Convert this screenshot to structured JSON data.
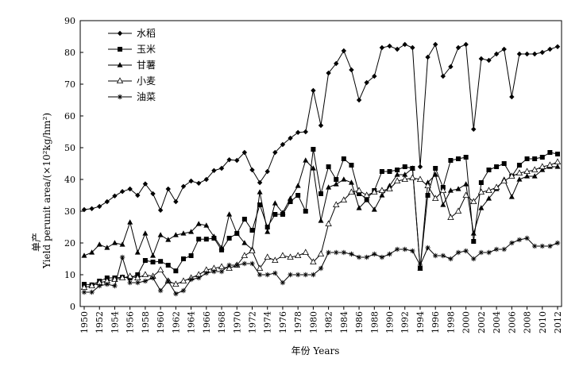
{
  "chart_data": {
    "type": "line",
    "title": "",
    "xlabel": "年份 Years",
    "ylabel_cn": "单产",
    "ylabel_en": "Yield perunit area/(×10²kg/hm²)",
    "xlim": [
      1950,
      2012
    ],
    "ylim": [
      0,
      90
    ],
    "y_ticks": [
      0,
      10,
      20,
      30,
      40,
      50,
      60,
      70,
      80,
      90
    ],
    "x_ticks": [
      1950,
      1952,
      1954,
      1956,
      1958,
      1960,
      1962,
      1964,
      1966,
      1968,
      1970,
      1972,
      1974,
      1976,
      1978,
      1980,
      1982,
      1984,
      1986,
      1988,
      1990,
      1992,
      1994,
      1996,
      1998,
      2000,
      2002,
      2004,
      2006,
      2008,
      2010,
      2012
    ],
    "grid": false,
    "legend_position": "top-left",
    "series": [
      {
        "name": "水稻",
        "marker": "diamond",
        "x": [
          1950,
          1951,
          1952,
          1953,
          1954,
          1955,
          1956,
          1957,
          1958,
          1959,
          1960,
          1961,
          1962,
          1963,
          1964,
          1965,
          1966,
          1967,
          1968,
          1969,
          1970,
          1971,
          1972,
          1973,
          1974,
          1975,
          1976,
          1977,
          1978,
          1979,
          1980,
          1981,
          1982,
          1983,
          1984,
          1985,
          1986,
          1987,
          1988,
          1989,
          1990,
          1991,
          1992,
          1993,
          1994,
          1995,
          1996,
          1997,
          1998,
          1999,
          2000,
          2001,
          2002,
          2003,
          2004,
          2005,
          2006,
          2007,
          2008,
          2009,
          2010,
          2011,
          2012
        ],
        "values": [
          30.5,
          30.8,
          31.5,
          33.0,
          34.8,
          36.2,
          37.0,
          35.0,
          38.6,
          35.5,
          30.3,
          37.0,
          33.0,
          37.8,
          39.5,
          38.8,
          40.0,
          42.8,
          43.5,
          46.2,
          46.0,
          48.5,
          43.0,
          39.0,
          42.5,
          48.5,
          51.0,
          53.0,
          54.8,
          55.0,
          68.0,
          57.0,
          73.5,
          76.5,
          80.5,
          74.5,
          65.0,
          70.5,
          72.5,
          81.5,
          82.0,
          81.0,
          82.5,
          81.5,
          44.0,
          78.5,
          82.5,
          72.5,
          75.5,
          81.5,
          82.5,
          55.8,
          78.0,
          77.5,
          79.5,
          81.0,
          66.0,
          79.5,
          79.5,
          79.5,
          80.0,
          81.0,
          81.8
        ]
      },
      {
        "name": "玉米",
        "marker": "square",
        "x": [
          1950,
          1951,
          1952,
          1953,
          1954,
          1955,
          1956,
          1957,
          1958,
          1959,
          1960,
          1961,
          1962,
          1963,
          1964,
          1965,
          1966,
          1967,
          1968,
          1969,
          1970,
          1971,
          1972,
          1973,
          1974,
          1975,
          1976,
          1977,
          1978,
          1979,
          1980,
          1981,
          1982,
          1983,
          1984,
          1985,
          1986,
          1987,
          1988,
          1989,
          1990,
          1991,
          1992,
          1993,
          1994,
          1995,
          1996,
          1997,
          1998,
          1999,
          2000,
          2001,
          2002,
          2003,
          2004,
          2005,
          2006,
          2007,
          2008,
          2009,
          2010,
          2011,
          2012
        ],
        "values": [
          7.0,
          6.8,
          8.0,
          9.0,
          9.0,
          9.2,
          9.0,
          10.0,
          14.5,
          14.0,
          14.2,
          13.0,
          11.2,
          15.0,
          16.0,
          21.2,
          21.2,
          21.5,
          17.8,
          21.5,
          23.0,
          27.5,
          24.0,
          32.0,
          25.0,
          29.0,
          29.0,
          33.0,
          35.0,
          30.0,
          49.5,
          35.5,
          44.0,
          40.0,
          46.5,
          44.5,
          35.5,
          34.0,
          36.5,
          42.5,
          42.5,
          43.0,
          44.0,
          43.5,
          12.0,
          35.0,
          43.5,
          37.5,
          46.0,
          46.5,
          47.0,
          20.5,
          39.0,
          43.0,
          44.0,
          45.0,
          41.0,
          44.5,
          46.5,
          46.5,
          47.0,
          48.5,
          48.0
        ]
      },
      {
        "name": "甘薯",
        "marker": "triangle",
        "x": [
          1950,
          1951,
          1952,
          1953,
          1954,
          1955,
          1956,
          1957,
          1958,
          1959,
          1960,
          1961,
          1962,
          1963,
          1964,
          1965,
          1966,
          1967,
          1968,
          1969,
          1970,
          1971,
          1972,
          1973,
          1974,
          1975,
          1976,
          1977,
          1978,
          1979,
          1980,
          1981,
          1982,
          1983,
          1984,
          1985,
          1986,
          1987,
          1988,
          1989,
          1990,
          1991,
          1992,
          1993,
          1994,
          1995,
          1996,
          1997,
          1998,
          1999,
          2000,
          2001,
          2002,
          2003,
          2004,
          2005,
          2006,
          2007,
          2008,
          2009,
          2010,
          2011,
          2012
        ],
        "values": [
          16.0,
          17.0,
          19.5,
          18.5,
          20.0,
          19.5,
          26.5,
          17.0,
          23.0,
          16.0,
          22.5,
          21.0,
          22.5,
          23.0,
          23.5,
          26.0,
          25.5,
          22.0,
          18.5,
          29.0,
          23.0,
          20.0,
          18.0,
          36.0,
          23.5,
          32.5,
          29.5,
          34.0,
          38.0,
          46.0,
          43.5,
          27.0,
          37.5,
          38.5,
          40.0,
          39.0,
          31.0,
          33.5,
          30.5,
          35.0,
          38.0,
          41.5,
          41.5,
          43.5,
          12.0,
          39.0,
          41.5,
          32.0,
          36.5,
          37.0,
          38.5,
          23.0,
          31.0,
          34.0,
          37.0,
          40.0,
          34.5,
          40.0,
          41.0,
          41.0,
          43.0,
          44.0,
          44.0
        ]
      },
      {
        "name": "小麦",
        "marker": "open-triangle",
        "x": [
          1950,
          1951,
          1952,
          1953,
          1954,
          1955,
          1956,
          1957,
          1958,
          1959,
          1960,
          1961,
          1962,
          1963,
          1964,
          1965,
          1966,
          1967,
          1968,
          1969,
          1970,
          1971,
          1972,
          1973,
          1974,
          1975,
          1976,
          1977,
          1978,
          1979,
          1980,
          1981,
          1982,
          1983,
          1984,
          1985,
          1986,
          1987,
          1988,
          1989,
          1990,
          1991,
          1992,
          1993,
          1994,
          1995,
          1996,
          1997,
          1998,
          1999,
          2000,
          2001,
          2002,
          2003,
          2004,
          2005,
          2006,
          2007,
          2008,
          2009,
          2010,
          2011,
          2012
        ],
        "values": [
          6.0,
          6.5,
          7.5,
          8.0,
          8.5,
          9.0,
          9.5,
          9.0,
          10.0,
          9.5,
          11.5,
          8.0,
          7.0,
          8.0,
          9.0,
          10.0,
          11.5,
          12.0,
          12.5,
          12.0,
          13.0,
          16.0,
          17.5,
          12.0,
          15.5,
          14.5,
          16.0,
          15.5,
          16.0,
          17.0,
          14.0,
          16.5,
          26.0,
          32.0,
          33.5,
          36.0,
          36.5,
          35.0,
          36.0,
          36.5,
          37.0,
          39.5,
          40.0,
          40.5,
          40.0,
          38.0,
          34.0,
          36.5,
          28.0,
          30.0,
          35.0,
          33.0,
          36.0,
          36.5,
          37.5,
          39.5,
          41.0,
          42.0,
          42.5,
          43.0,
          44.0,
          44.5,
          45.5
        ]
      },
      {
        "name": "油菜",
        "marker": "star",
        "x": [
          1950,
          1951,
          1952,
          1953,
          1954,
          1955,
          1956,
          1957,
          1958,
          1959,
          1960,
          1961,
          1962,
          1963,
          1964,
          1965,
          1966,
          1967,
          1968,
          1969,
          1970,
          1971,
          1972,
          1973,
          1974,
          1975,
          1976,
          1977,
          1978,
          1979,
          1980,
          1981,
          1982,
          1983,
          1984,
          1985,
          1986,
          1987,
          1988,
          1989,
          1990,
          1991,
          1992,
          1993,
          1994,
          1995,
          1996,
          1997,
          1998,
          1999,
          2000,
          2001,
          2002,
          2003,
          2004,
          2005,
          2006,
          2007,
          2008,
          2009,
          2010,
          2011,
          2012
        ],
        "values": [
          4.5,
          4.5,
          6.5,
          7.0,
          6.5,
          15.5,
          7.5,
          7.5,
          8.0,
          9.0,
          5.0,
          8.0,
          4.0,
          5.0,
          8.5,
          9.0,
          10.5,
          11.0,
          11.0,
          13.0,
          13.0,
          13.5,
          13.5,
          10.0,
          10.0,
          10.5,
          7.5,
          10.0,
          10.0,
          10.0,
          10.0,
          12.0,
          17.0,
          17.0,
          17.0,
          16.5,
          15.5,
          15.5,
          16.5,
          15.5,
          16.5,
          18.0,
          18.0,
          17.5,
          13.0,
          18.5,
          16.0,
          16.0,
          15.0,
          17.0,
          17.5,
          15.0,
          17.0,
          17.0,
          18.0,
          18.0,
          20.0,
          21.0,
          21.5,
          19.0,
          19.0,
          19.0,
          20.0
        ]
      }
    ]
  }
}
